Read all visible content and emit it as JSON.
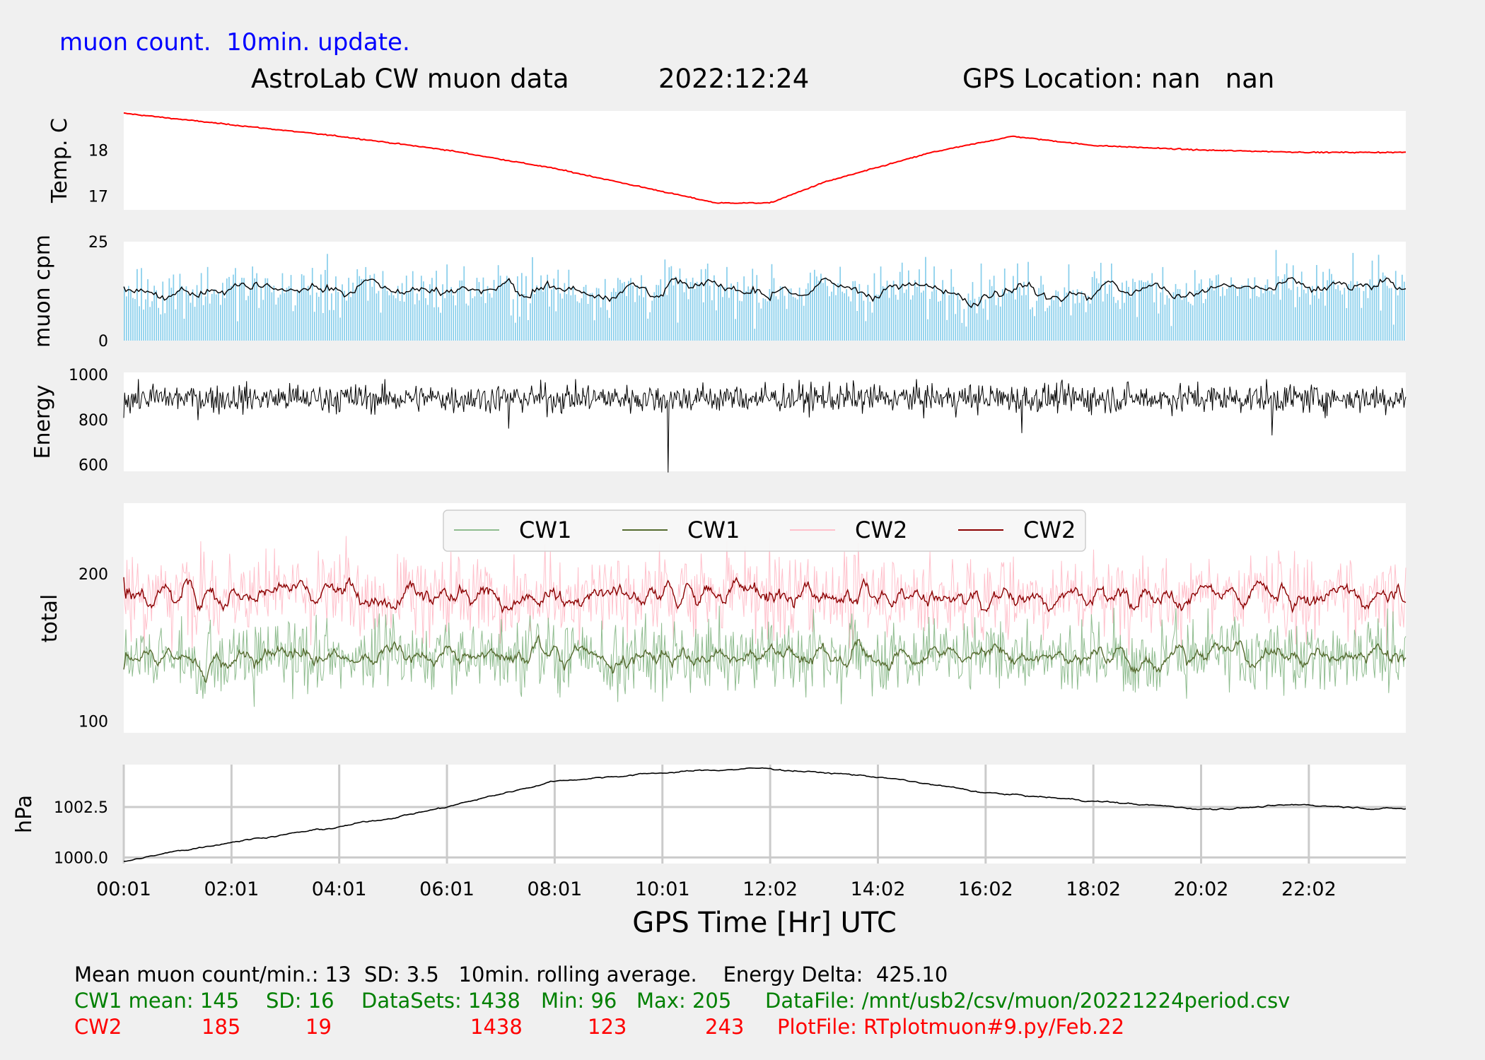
{
  "header": {
    "note": "muon count.  10min. update.",
    "title": "AstroLab CW muon data",
    "date": "2022:12:24",
    "location": "GPS Location: nan   nan"
  },
  "colors": {
    "temperature": "#ff0000",
    "muon_bars": "#87ceeb",
    "cw1_raw": "#8fbc8f",
    "cw1_avg": "#556b2f",
    "cw2_raw": "#ffc0cb",
    "cw2_avg": "#8b0000",
    "black": "#000000"
  },
  "chart_data": [
    {
      "type": "line",
      "ylabel": "Temp. C",
      "yticks": [
        "17",
        "18"
      ],
      "ylim": [
        16.7,
        18.85
      ],
      "x_range_hours": [
        0,
        23.8
      ],
      "series": [
        {
          "color": "red",
          "values_by_hour": [
            [
              0,
              18.8
            ],
            [
              2,
              18.55
            ],
            [
              4,
              18.3
            ],
            [
              6,
              18.0
            ],
            [
              8,
              17.6
            ],
            [
              10,
              17.1
            ],
            [
              11,
              16.85
            ],
            [
              12,
              16.85
            ],
            [
              13,
              17.3
            ],
            [
              15,
              17.95
            ],
            [
              16.5,
              18.3
            ],
            [
              18,
              18.1
            ],
            [
              20,
              18.0
            ],
            [
              22,
              17.95
            ],
            [
              23.8,
              17.95
            ]
          ]
        }
      ]
    },
    {
      "type": "bar",
      "ylabel": "muon cpm",
      "yticks": [
        "0",
        "25"
      ],
      "ylim": [
        0,
        25
      ],
      "mean": 13,
      "sd": 3.5,
      "rolling_average_minutes": 10
    },
    {
      "type": "line",
      "ylabel": "Energy",
      "yticks": [
        "600",
        "800",
        "1000"
      ],
      "ylim": [
        570,
        1010
      ],
      "typical_range": [
        830,
        960
      ],
      "min_spike": {
        "hour": 10.1,
        "value": 565
      }
    },
    {
      "type": "line",
      "ylabel": "total",
      "yticks": [
        "100",
        "200"
      ],
      "ylim": [
        92,
        248
      ],
      "legend": [
        "CW1",
        "CW1",
        "CW2",
        "CW2"
      ],
      "legend_position": "top-center",
      "series": [
        {
          "name": "CW1",
          "kind": "raw",
          "mean": 145,
          "sd": 16,
          "min": 96,
          "max": 205
        },
        {
          "name": "CW1",
          "kind": "rolling average",
          "mean": 145
        },
        {
          "name": "CW2",
          "kind": "raw",
          "mean": 185,
          "sd": 19,
          "min": 123,
          "max": 243
        },
        {
          "name": "CW2",
          "kind": "rolling average",
          "mean": 185
        }
      ]
    },
    {
      "type": "line",
      "ylabel": "hPa",
      "yticks": [
        "1000.0",
        "1002.5"
      ],
      "ylim": [
        999.7,
        1004.6
      ],
      "grid": true,
      "xlabel": "GPS Time  [Hr] UTC",
      "xticks": [
        "00:01",
        "02:01",
        "04:01",
        "06:01",
        "08:01",
        "10:01",
        "12:02",
        "14:02",
        "16:02",
        "18:02",
        "20:02",
        "22:02"
      ],
      "series": [
        {
          "color": "black",
          "values_by_hour": [
            [
              0,
              999.8
            ],
            [
              2,
              1000.8
            ],
            [
              4,
              1001.5
            ],
            [
              6,
              1002.5
            ],
            [
              8,
              1003.8
            ],
            [
              10,
              1004.2
            ],
            [
              11.5,
              1004.4
            ],
            [
              12,
              1004.4
            ],
            [
              14,
              1004.0
            ],
            [
              16,
              1003.2
            ],
            [
              18,
              1002.8
            ],
            [
              20,
              1002.4
            ],
            [
              22,
              1002.6
            ],
            [
              23.8,
              1002.4
            ]
          ]
        }
      ]
    }
  ],
  "footer": {
    "summary": "Mean muon count/min.: 13  SD: 3.5   10min. rolling average.    Energy Delta:  425.10",
    "cw1": {
      "label": "CW1 mean: 145",
      "sd": "SD: 16",
      "datasets": "DataSets: 1438",
      "min": "Min: 96",
      "max": "Max: 205",
      "file": "DataFile: /mnt/usb2/csv/muon/20221224period.csv"
    },
    "cw2": {
      "label": "CW2",
      "mean": "185",
      "sd": "19",
      "datasets": "1438",
      "min": "123",
      "max": "243",
      "file": "PlotFile: RTplotmuon#9.py/Feb.22"
    }
  }
}
